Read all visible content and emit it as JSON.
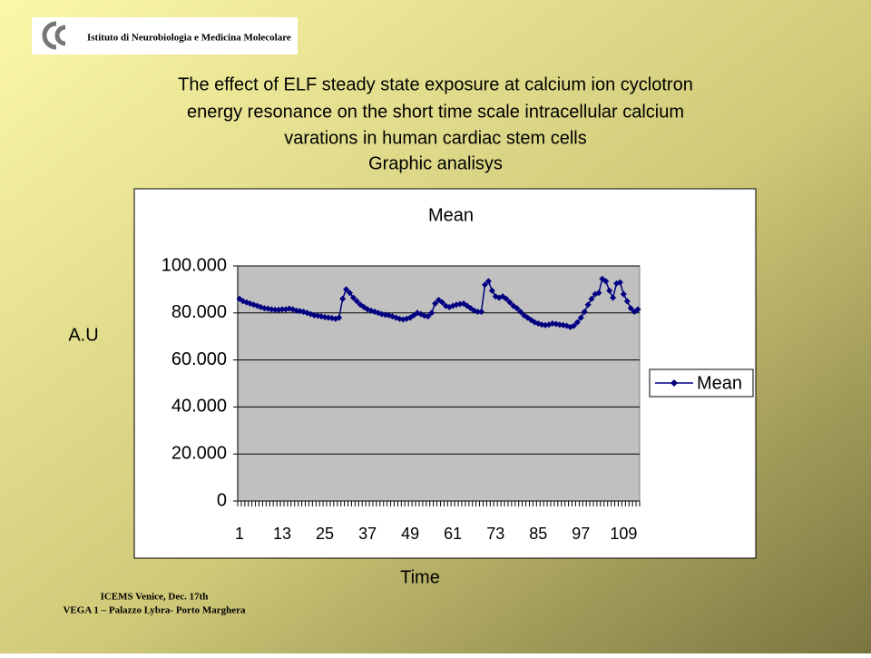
{
  "header": {
    "institute": "Istituto di Neurobiologia e Medicina Molecolare"
  },
  "slide_title": [
    "The effect of  ELF steady state exposure at calcium ion cyclotron",
    "energy resonance on the short time scale intracellular calcium",
    "varations in human cardiac stem cells",
    "Graphic analisys"
  ],
  "footer": [
    "ICEMS Venice, Dec. 17th",
    "VEGA 1 – Palazzo Lybra- Porto Marghera"
  ],
  "chart_data": {
    "type": "line",
    "title": "Mean",
    "y_label": "A.U",
    "x_label": "Time",
    "categories": [
      1,
      null,
      null,
      null,
      null,
      null,
      null,
      null,
      null,
      null,
      null,
      null,
      13,
      null,
      null,
      null,
      null,
      null,
      null,
      null,
      null,
      null,
      null,
      null,
      25,
      null,
      null,
      null,
      null,
      null,
      null,
      null,
      null,
      null,
      null,
      null,
      37,
      null,
      null,
      null,
      null,
      null,
      null,
      null,
      null,
      null,
      null,
      null,
      49,
      null,
      null,
      null,
      null,
      null,
      null,
      null,
      null,
      null,
      null,
      null,
      61,
      null,
      null,
      null,
      null,
      null,
      null,
      null,
      null,
      null,
      null,
      null,
      73,
      null,
      null,
      null,
      null,
      null,
      null,
      null,
      null,
      null,
      null,
      null,
      85,
      null,
      null,
      null,
      null,
      null,
      null,
      null,
      null,
      null,
      null,
      null,
      97,
      null,
      null,
      null,
      null,
      null,
      null,
      null,
      null,
      null,
      null,
      null,
      109,
      null,
      null,
      null,
      null
    ],
    "series": [
      {
        "name": "Mean",
        "color": "#000080",
        "values": [
          86,
          85,
          84.5,
          84,
          83.5,
          83,
          82.5,
          82,
          81.8,
          81.5,
          81.3,
          81.3,
          81.5,
          81.5,
          81.8,
          81.5,
          81,
          80.8,
          80.5,
          80,
          79.5,
          79,
          78.8,
          78.5,
          78.2,
          78,
          77.8,
          77.5,
          78,
          86,
          90,
          88.5,
          86.5,
          85,
          83.5,
          82.5,
          81.5,
          81,
          80.5,
          80,
          79.5,
          79.2,
          79,
          78.5,
          78,
          77.5,
          77.2,
          77.5,
          78,
          79,
          80,
          79.5,
          78.8,
          78.5,
          80,
          84,
          85.5,
          84.5,
          83,
          82.5,
          83,
          83.5,
          83.8,
          84,
          83,
          82,
          81,
          80.5,
          80.5,
          92,
          93.5,
          89.5,
          87,
          86.5,
          87,
          86,
          84.5,
          83,
          82,
          80.5,
          79,
          78,
          77,
          76,
          75.5,
          75,
          74.8,
          75,
          75.5,
          75.3,
          75,
          74.8,
          74.5,
          74,
          74.5,
          76,
          78,
          80.5,
          83.5,
          86,
          88,
          88.5,
          94.5,
          93.5,
          89.5,
          86.5,
          92.5,
          93,
          88,
          85,
          82,
          80.5,
          81.5
        ]
      }
    ],
    "ylim": [
      0,
      100
    ],
    "yticks": [
      0,
      {
        "value": 20,
        "label": "20.000"
      },
      {
        "value": 40,
        "label": "40.000"
      },
      {
        "value": 60,
        "label": "60.000"
      },
      {
        "value": 80,
        "label": "80.000"
      },
      {
        "value": 100,
        "label": "100.000"
      }
    ],
    "grid": true,
    "legend": "right"
  }
}
